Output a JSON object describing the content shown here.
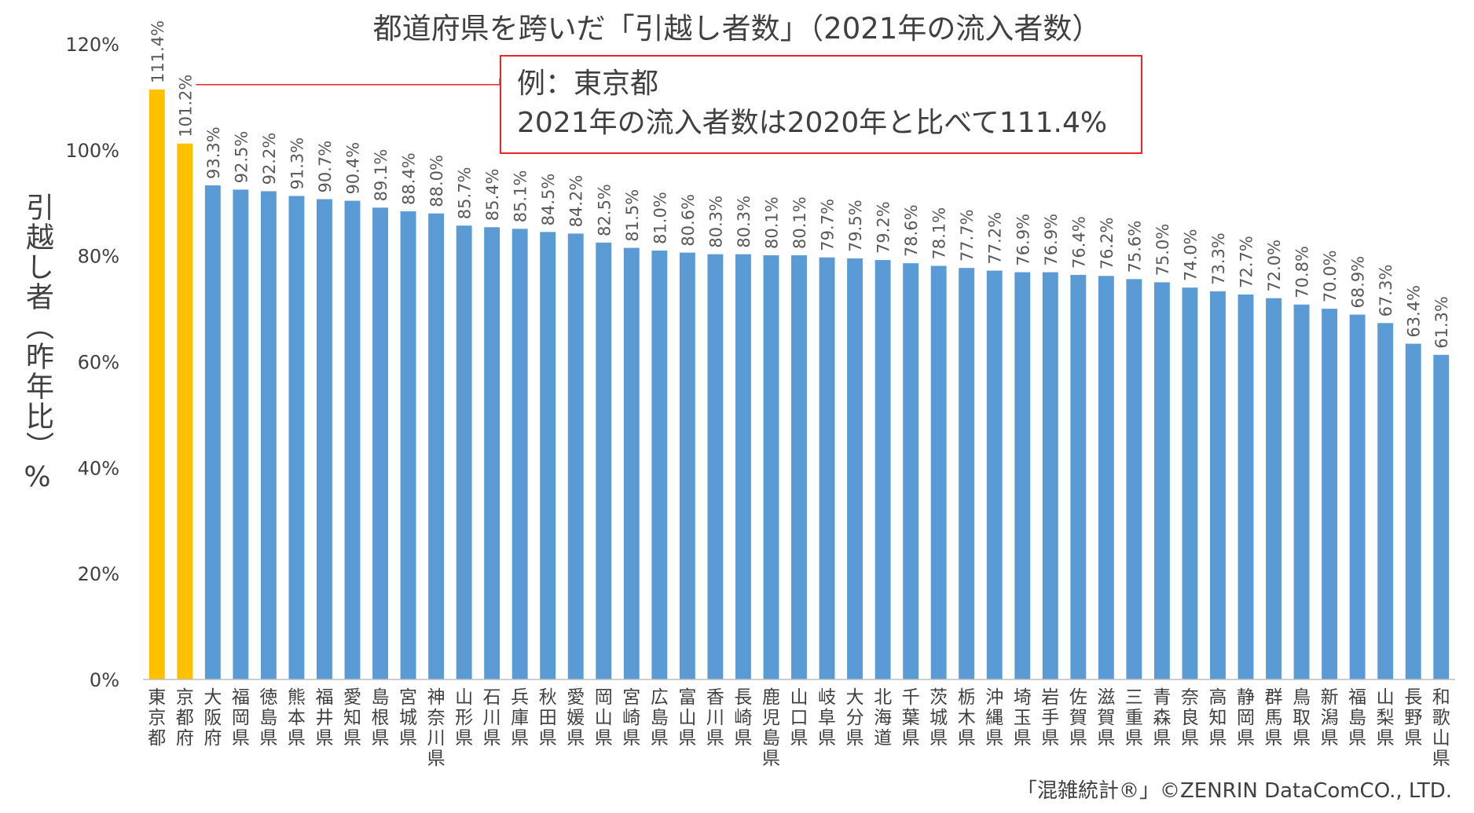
{
  "chart_data": {
    "type": "bar",
    "title": "都道府県を跨いだ「引越し者数」（2021年の流入者数）",
    "ylabel": "引越し者（昨年比）%",
    "ylim": [
      0,
      120
    ],
    "yticks": [
      "0%",
      "20%",
      "40%",
      "60%",
      "80%",
      "100%",
      "120%"
    ],
    "grid": false,
    "categories": [
      "東京都",
      "京都府",
      "大阪府",
      "福岡県",
      "徳島県",
      "熊本県",
      "福井県",
      "愛知県",
      "島根県",
      "宮城県",
      "神奈川県",
      "山形県",
      "石川県",
      "兵庫県",
      "秋田県",
      "愛媛県",
      "岡山県",
      "宮崎県",
      "広島県",
      "富山県",
      "香川県",
      "長崎県",
      "鹿児島県",
      "山口県",
      "岐阜県",
      "大分県",
      "北海道",
      "千葉県",
      "茨城県",
      "栃木県",
      "沖縄県",
      "埼玉県",
      "岩手県",
      "佐賀県",
      "滋賀県",
      "三重県",
      "青森県",
      "奈良県",
      "高知県",
      "静岡県",
      "群馬県",
      "鳥取県",
      "新潟県",
      "福島県",
      "山梨県",
      "長野県",
      "和歌山県"
    ],
    "values": [
      111.4,
      101.2,
      93.3,
      92.5,
      92.2,
      91.3,
      90.7,
      90.4,
      89.1,
      88.4,
      88.0,
      85.7,
      85.4,
      85.1,
      84.5,
      84.2,
      82.5,
      81.5,
      81.0,
      80.6,
      80.3,
      80.3,
      80.1,
      80.1,
      79.7,
      79.5,
      79.2,
      78.6,
      78.1,
      77.7,
      77.2,
      76.9,
      76.9,
      76.4,
      76.2,
      75.6,
      75.0,
      74.0,
      73.3,
      72.7,
      72.0,
      70.8,
      70.0,
      68.9,
      67.3,
      63.4,
      61.3
    ],
    "data_labels": [
      "111.4%",
      "101.2%",
      "93.3%",
      "92.5%",
      "92.2%",
      "91.3%",
      "90.7%",
      "90.4%",
      "89.1%",
      "88.4%",
      "88.0%",
      "85.7%",
      "85.4%",
      "85.1%",
      "84.5%",
      "84.2%",
      "82.5%",
      "81.5%",
      "81.0%",
      "80.6%",
      "80.3%",
      "80.3%",
      "80.1%",
      "80.1%",
      "79.7%",
      "79.5%",
      "79.2%",
      "78.6%",
      "78.1%",
      "77.7%",
      "77.2%",
      "76.9%",
      "76.9%",
      "76.4%",
      "76.2%",
      "75.6%",
      "75.0%",
      "74.0%",
      "73.3%",
      "72.7%",
      "72.0%",
      "70.8%",
      "70.0%",
      "68.9%",
      "67.3%",
      "63.4%",
      "61.3%"
    ],
    "highlight_count": 2,
    "colors": {
      "highlight": "#ffc000",
      "bar": "#5b9bd5",
      "callout_border": "#e8262b",
      "text": "#404040",
      "axis": "#bfbfbf"
    },
    "annotation": {
      "lines": [
        "例：東京都",
        "2021年の流入者数は2020年と比べて111.4%"
      ]
    }
  },
  "copyright": "「混雑統計®」©ZENRIN DataComCO., LTD."
}
